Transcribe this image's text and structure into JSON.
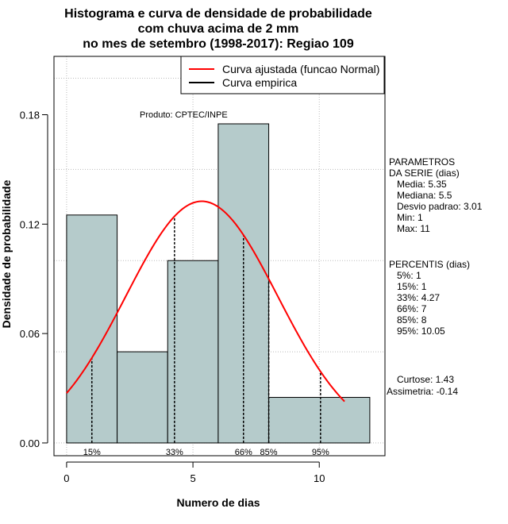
{
  "chart_data": {
    "type": "histogram",
    "title_lines": [
      "Histograma e curva de densidade de probabilidade",
      "com chuva acima de 2 mm",
      "no mes de setembro (1998-2017): Regiao 109"
    ],
    "xlabel": "Numero de dias",
    "ylabel": "Densidade de probabilidade",
    "xlim": [
      -0.5,
      12.6
    ],
    "ylim": [
      -0.007,
      0.212
    ],
    "x_ticks": [
      0,
      5,
      10
    ],
    "y_ticks": [
      "0.00",
      "0.06",
      "0.12",
      "0.18"
    ],
    "grid": true,
    "bars": [
      {
        "x0": 0,
        "x1": 2,
        "density": 0.125
      },
      {
        "x0": 2,
        "x1": 4,
        "density": 0.05
      },
      {
        "x0": 4,
        "x1": 6,
        "density": 0.1
      },
      {
        "x0": 6,
        "x1": 8,
        "density": 0.175
      },
      {
        "x0": 8,
        "x1": 12,
        "density": 0.025
      }
    ],
    "bar_color": "#b5cbcb",
    "normal_curve": {
      "mean": 5.35,
      "sd": 3.01,
      "x_from": 0,
      "x_to": 11,
      "color": "#ff0000"
    },
    "percentile_lines": [
      {
        "label": "15%",
        "x": 1
      },
      {
        "label": "33%",
        "x": 4.27
      },
      {
        "label": "66%",
        "x": 7
      },
      {
        "label": "85%",
        "x": 8
      },
      {
        "label": "95%",
        "x": 10.05
      }
    ],
    "legend": {
      "placement": "top-right",
      "entries": [
        {
          "name": "Curva ajustada (funcao Normal)",
          "color": "#ff0000"
        },
        {
          "name": "Curva empirica",
          "color": "#000000"
        }
      ]
    },
    "annotation": "Produto: CPTEC/INPE"
  },
  "side_panel": {
    "parametros": [
      "PARAMETROS",
      "DA SERIE (dias)",
      "   Media: 5.35",
      "   Mediana: 5.5",
      "   Desvio padrao: 3.01",
      "   Min: 1",
      "   Max: 11"
    ],
    "percentis": [
      "PERCENTIS (dias)",
      "   5%: 1",
      "   15%: 1",
      "   33%: 4.27",
      "   66%: 7",
      "   85%: 8",
      "   95%: 10.05"
    ],
    "shape": [
      "Curtose: 1.43",
      "Assimetria: -0.14"
    ]
  }
}
